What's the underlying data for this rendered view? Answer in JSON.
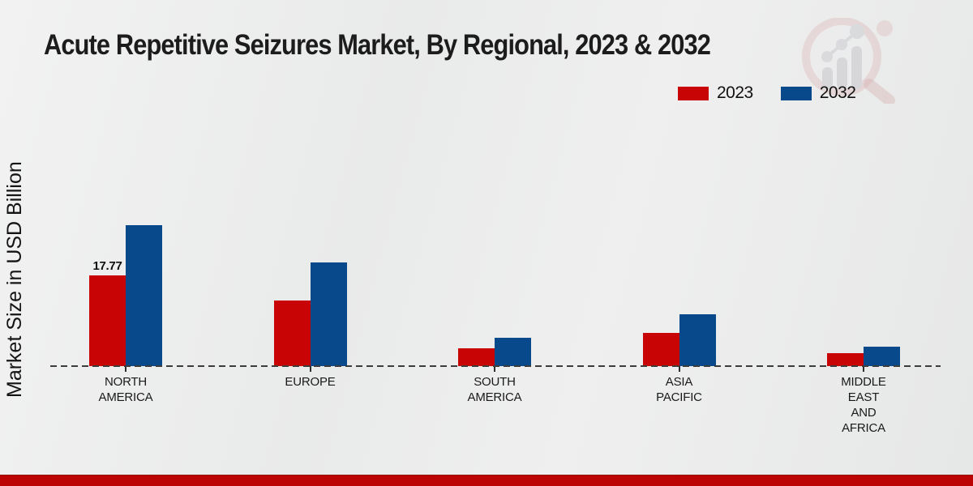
{
  "title": "Acute Repetitive Seizures Market, By Regional, 2023 & 2032",
  "y_axis_label": "Market Size in USD Billion",
  "legend": {
    "items": [
      {
        "label": "2023",
        "color": "#c90404"
      },
      {
        "label": "2032",
        "color": "#07498a"
      }
    ]
  },
  "watermark": {
    "icon": "magnifier-bar-chart-logo"
  },
  "footer": {
    "band_color": "#bc0404"
  },
  "chart_data": {
    "type": "bar",
    "title": "Acute Repetitive Seizures Market, By Regional, 2023 & 2032",
    "xlabel": "",
    "ylabel": "Market Size in USD Billion",
    "categories": [
      "NORTH AMERICA",
      "EUROPE",
      "SOUTH AMERICA",
      "ASIA PACIFIC",
      "MIDDLE EAST AND AFRICA"
    ],
    "categories_lines": [
      [
        "NORTH",
        "AMERICA"
      ],
      [
        "EUROPE"
      ],
      [
        "SOUTH",
        "AMERICA"
      ],
      [
        "ASIA",
        "PACIFIC"
      ],
      [
        "MIDDLE",
        "EAST",
        "AND",
        "AFRICA"
      ]
    ],
    "series": [
      {
        "name": "2023",
        "color": "#c90404",
        "values": [
          17.77,
          12.9,
          3.5,
          6.5,
          2.5
        ]
      },
      {
        "name": "2032",
        "color": "#07498a",
        "values": [
          27.6,
          20.3,
          5.6,
          10.2,
          3.8
        ]
      }
    ],
    "annotations": [
      {
        "series_index": 0,
        "category_index": 0,
        "text": "17.77"
      }
    ],
    "ylim": [
      0,
      30
    ],
    "grid": false,
    "legend_position": "top-right",
    "baseline_style": "dashed",
    "value_axis_ticks_visible": false
  }
}
